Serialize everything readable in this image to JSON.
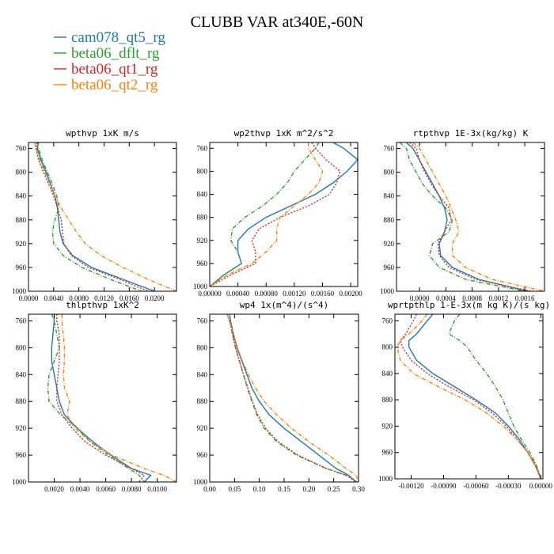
{
  "title": "CLUBB VAR at340E,-60N",
  "series": [
    {
      "name": "cam078_qt5_rg",
      "color": "#1f77b4",
      "dash": ""
    },
    {
      "name": "beta06_dflt_rg",
      "color": "#2ca02c",
      "dash": "5,2,1,2"
    },
    {
      "name": "beta06_qt1_rg",
      "color": "#d62728",
      "dash": "2,2"
    },
    {
      "name": "beta06_qt2_rg",
      "color": "#ff7f0e",
      "dash": "5,2,1,2"
    }
  ],
  "chart_data": [
    {
      "type": "line",
      "title": "wpthvp  1xK m/s",
      "ylim": [
        1000,
        750
      ],
      "yticks": [
        "760",
        "800",
        "840",
        "880",
        "920",
        "960",
        "1000"
      ],
      "xlim": [
        0.0,
        0.0235
      ],
      "xticks": [
        "0.0000",
        "0.0040",
        "0.0080",
        "0.0120",
        "0.0160",
        "0.0200"
      ],
      "y": [
        750,
        760,
        780,
        800,
        820,
        840,
        860,
        880,
        900,
        920,
        940,
        960,
        980,
        1000
      ],
      "series": [
        {
          "name": "cam078_qt5_rg",
          "values": [
            0.0016,
            0.0014,
            0.002,
            0.0028,
            0.0035,
            0.0042,
            0.0046,
            0.0048,
            0.005,
            0.0055,
            0.007,
            0.01,
            0.015,
            0.02
          ]
        },
        {
          "name": "beta06_dflt_rg",
          "values": [
            0.0014,
            0.0016,
            0.0022,
            0.003,
            0.0038,
            0.0045,
            0.0048,
            0.0042,
            0.0038,
            0.004,
            0.0055,
            0.0085,
            0.013,
            0.018
          ]
        },
        {
          "name": "beta06_qt1_rg",
          "values": [
            0.0014,
            0.0012,
            0.0016,
            0.0024,
            0.0032,
            0.004,
            0.0046,
            0.0052,
            0.0054,
            0.0056,
            0.0068,
            0.0095,
            0.0145,
            0.019
          ]
        },
        {
          "name": "beta06_qt2_rg",
          "values": [
            0.001,
            0.0012,
            0.0018,
            0.0026,
            0.0034,
            0.0042,
            0.0052,
            0.0064,
            0.0076,
            0.009,
            0.0115,
            0.015,
            0.019,
            0.0235
          ]
        }
      ]
    },
    {
      "type": "line",
      "title": "wp2thvp  1xK m^2/s^2",
      "ylim": [
        1000,
        750
      ],
      "yticks": [
        "760",
        "800",
        "840",
        "880",
        "920",
        "960",
        "1000"
      ],
      "xlim": [
        0.0,
        0.0021
      ],
      "xticks": [
        "0.00000",
        "0.00040",
        "0.00080",
        "0.00120",
        "0.00160",
        "0.00200"
      ],
      "y": [
        750,
        760,
        780,
        800,
        820,
        840,
        860,
        880,
        900,
        920,
        940,
        960,
        980,
        1000
      ],
      "series": [
        {
          "name": "cam078_qt5_rg",
          "values": [
            0.00175,
            0.0019,
            0.0021,
            0.00195,
            0.00175,
            0.0015,
            0.00115,
            0.0008,
            0.00055,
            0.0004,
            0.0004,
            0.00045,
            0.0002,
            0.0
          ]
        },
        {
          "name": "beta06_dflt_rg",
          "values": [
            0.00155,
            0.0015,
            0.00135,
            0.0012,
            0.0011,
            0.00095,
            0.00075,
            0.0005,
            0.00032,
            0.0003,
            0.0004,
            0.00045,
            0.0002,
            0.0
          ]
        },
        {
          "name": "beta06_qt1_rg",
          "values": [
            0.00145,
            0.0015,
            0.00165,
            0.00185,
            0.0018,
            0.0017,
            0.0014,
            0.001,
            0.0007,
            0.0006,
            0.00065,
            0.00065,
            0.0003,
            0.0
          ]
        },
        {
          "name": "beta06_qt2_rg",
          "values": [
            0.0014,
            0.0014,
            0.0015,
            0.0016,
            0.00155,
            0.0014,
            0.0012,
            0.001,
            0.00095,
            0.00095,
            0.0008,
            0.0006,
            0.00025,
            0.0
          ]
        }
      ]
    },
    {
      "type": "line",
      "title": "rtpthvp  1E-3x(kg/kg) K",
      "ylim": [
        1000,
        750
      ],
      "yticks": [
        "760",
        "800",
        "840",
        "880",
        "920",
        "960",
        "1000"
      ],
      "xlim": [
        -0.00035,
        0.0019
      ],
      "xticks": [
        "0.0000",
        "0.0004",
        "0.0008",
        "0.0012",
        "0.0016"
      ],
      "y": [
        750,
        760,
        780,
        800,
        820,
        840,
        860,
        880,
        900,
        920,
        940,
        960,
        980,
        1000
      ],
      "series": [
        {
          "name": "cam078_qt5_rg",
          "values": [
            -0.0002,
            -0.0001,
            0.0,
            0.0001,
            0.0002,
            0.0003,
            0.00038,
            0.00042,
            0.00038,
            0.0003,
            0.00032,
            0.0005,
            0.0009,
            0.00165
          ]
        },
        {
          "name": "beta06_dflt_rg",
          "values": [
            -0.0003,
            -0.0002,
            -0.00015,
            -5e-05,
            5e-05,
            0.0002,
            0.0004,
            0.0005,
            0.00045,
            0.0002,
            0.00015,
            0.0003,
            0.0007,
            0.0016
          ]
        },
        {
          "name": "beta06_qt1_rg",
          "values": [
            -0.00015,
            -5e-05,
            0.0,
            8e-05,
            0.00018,
            0.0003,
            0.00045,
            0.00048,
            0.00038,
            0.00028,
            0.0003,
            0.00045,
            0.00085,
            0.0017
          ]
        },
        {
          "name": "beta06_qt2_rg",
          "values": [
            -0.0001,
            0.0,
            0.0001,
            0.0002,
            0.0003,
            0.0004,
            0.00048,
            0.00055,
            0.0006,
            0.0005,
            0.0005,
            0.0007,
            0.0011,
            0.0019
          ]
        }
      ]
    },
    {
      "type": "line",
      "title": "thlpthvp  1xK^2",
      "ylim": [
        1000,
        750
      ],
      "yticks": [
        "760",
        "800",
        "840",
        "880",
        "920",
        "960",
        "1000"
      ],
      "xlim": [
        0.0,
        0.0115
      ],
      "xticks": [
        "0.0020",
        "0.0040",
        "0.0060",
        "0.0080",
        "0.0100"
      ],
      "y": [
        750,
        760,
        780,
        800,
        820,
        840,
        860,
        880,
        900,
        920,
        940,
        960,
        980,
        990,
        1000
      ],
      "series": [
        {
          "name": "cam078_qt5_rg",
          "values": [
            0.002,
            0.002,
            0.0019,
            0.0018,
            0.0018,
            0.002,
            0.0022,
            0.0024,
            0.0028,
            0.0038,
            0.005,
            0.0064,
            0.008,
            0.0095,
            0.009
          ]
        },
        {
          "name": "beta06_dflt_rg",
          "values": [
            0.0018,
            0.002,
            0.0022,
            0.0024,
            0.002,
            0.0016,
            0.0015,
            0.0016,
            0.0025,
            0.0038,
            0.0048,
            0.0062,
            0.0078,
            0.0086,
            0.009
          ]
        },
        {
          "name": "beta06_qt1_rg",
          "values": [
            0.0022,
            0.0022,
            0.0024,
            0.0024,
            0.0024,
            0.0023,
            0.0022,
            0.0022,
            0.0026,
            0.0034,
            0.0044,
            0.006,
            0.008,
            0.009,
            0.0086
          ]
        },
        {
          "name": "beta06_qt2_rg",
          "values": [
            0.0026,
            0.0026,
            0.0027,
            0.0028,
            0.0028,
            0.0027,
            0.0028,
            0.0032,
            0.003,
            0.0036,
            0.0048,
            0.0065,
            0.009,
            0.0105,
            0.0115
          ]
        }
      ]
    },
    {
      "type": "line",
      "title": "wp4  1x(m^4)/(s^4)",
      "ylim": [
        1000,
        750
      ],
      "yticks": [
        "760",
        "800",
        "840",
        "880",
        "920",
        "960",
        "1000"
      ],
      "xlim": [
        0.0,
        0.3
      ],
      "xticks": [
        "0.00",
        "0.05",
        "0.10",
        "0.15",
        "0.20",
        "0.25",
        "0.30"
      ],
      "y": [
        750,
        760,
        780,
        800,
        820,
        840,
        860,
        880,
        900,
        920,
        940,
        960,
        980,
        990,
        1000
      ],
      "series": [
        {
          "name": "cam078_qt5_rg",
          "values": [
            0.04,
            0.042,
            0.048,
            0.055,
            0.065,
            0.075,
            0.085,
            0.1,
            0.12,
            0.15,
            0.185,
            0.22,
            0.255,
            0.28,
            0.295
          ]
        },
        {
          "name": "beta06_dflt_rg",
          "values": [
            0.035,
            0.04,
            0.046,
            0.052,
            0.06,
            0.068,
            0.076,
            0.085,
            0.095,
            0.11,
            0.135,
            0.175,
            0.235,
            0.275,
            0.3
          ]
        },
        {
          "name": "beta06_qt1_rg",
          "values": [
            0.035,
            0.04,
            0.046,
            0.052,
            0.06,
            0.068,
            0.077,
            0.086,
            0.097,
            0.113,
            0.138,
            0.178,
            0.235,
            0.275,
            0.295
          ]
        },
        {
          "name": "beta06_qt2_rg",
          "values": [
            0.035,
            0.04,
            0.048,
            0.056,
            0.066,
            0.078,
            0.092,
            0.11,
            0.135,
            0.165,
            0.2,
            0.24,
            0.275,
            0.295,
            0.3
          ]
        }
      ]
    },
    {
      "type": "line",
      "title": "wprtpthlp  1-E-3x(m kg K)/(s kg)",
      "ylim": [
        1000,
        750
      ],
      "yticks": [
        "760",
        "800",
        "840",
        "880",
        "920",
        "960",
        "1000"
      ],
      "xlim": [
        -0.00135,
        2e-05
      ],
      "xticks": [
        "-0.00120",
        "-0.00090",
        "-0.00060",
        "-0.00030",
        "0.00000"
      ],
      "y": [
        750,
        760,
        780,
        790,
        800,
        820,
        840,
        860,
        880,
        900,
        920,
        940,
        960,
        980,
        1000
      ],
      "series": [
        {
          "name": "cam078_qt5_rg",
          "values": [
            -0.001,
            -0.00105,
            -0.00115,
            -0.00122,
            -0.00122,
            -0.00115,
            -0.001,
            -0.0008,
            -0.0006,
            -0.00042,
            -0.0003,
            -0.0002,
            -0.00012,
            -5e-05,
            0.0
          ]
        },
        {
          "name": "beta06_dflt_rg",
          "values": [
            -0.00075,
            -0.0008,
            -0.00085,
            -0.00075,
            -0.00068,
            -0.0006,
            -0.0005,
            -0.00042,
            -0.00035,
            -0.0003,
            -0.00025,
            -0.00018,
            -0.0001,
            -4e-05,
            0.0
          ]
        },
        {
          "name": "beta06_qt1_rg",
          "values": [
            -0.00115,
            -0.00118,
            -0.00125,
            -0.0013,
            -0.00128,
            -0.0012,
            -0.00105,
            -0.00085,
            -0.00062,
            -0.00045,
            -0.00032,
            -0.00022,
            -0.00012,
            -4e-05,
            0.0
          ]
        },
        {
          "name": "beta06_qt2_rg",
          "values": [
            -0.00105,
            -0.0011,
            -0.00122,
            -0.0013,
            -0.00133,
            -0.0013,
            -0.00118,
            -0.00095,
            -0.0007,
            -0.0005,
            -0.00035,
            -0.00022,
            -0.00012,
            -5e-05,
            0.0
          ]
        }
      ]
    }
  ]
}
